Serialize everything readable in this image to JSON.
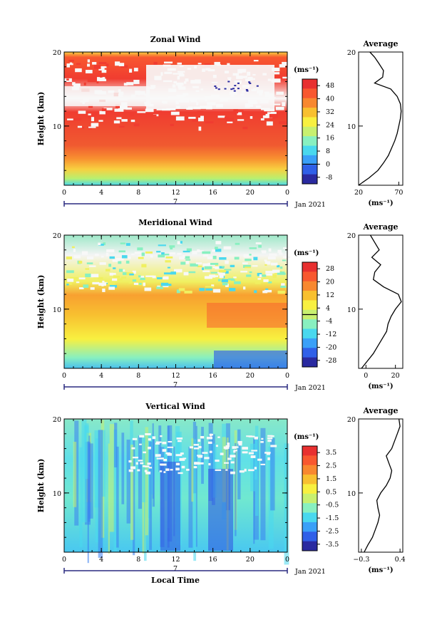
{
  "figure": {
    "background": "#ffffff"
  },
  "colormap": {
    "stops": [
      "#2a2aa0",
      "#3060e8",
      "#3aa0f8",
      "#49d8ee",
      "#88f0c0",
      "#c8f070",
      "#f8f040",
      "#f8c030",
      "#f88830",
      "#f85830",
      "#e83030"
    ]
  },
  "chart_data": [
    {
      "type": "heatmap",
      "title": "Zonal Wind",
      "ylabel": "Height (km)",
      "ylim": [
        2,
        20
      ],
      "y_ticks": [
        "10",
        "20"
      ],
      "x_ticks": [
        "0",
        "4",
        "8",
        "12",
        "16",
        "20",
        "0"
      ],
      "date_marker": "7",
      "date_label": "Jan 2021",
      "colorbar": {
        "unit": "(ms⁻¹)",
        "labels": [
          "48",
          "40",
          "32",
          "24",
          "16",
          "8",
          "0",
          "-8"
        ],
        "vmin": -12,
        "vmax": 52,
        "contour": 0
      },
      "average": {
        "title": "Average",
        "unit": "(ms⁻¹)",
        "x_ticks": [
          "20",
          "70"
        ],
        "xlim": [
          20,
          75
        ],
        "heights": [
          2.0,
          3.0,
          4.0,
          5.0,
          6.0,
          7.0,
          8.0,
          9.0,
          10.0,
          11.0,
          12.0,
          13.0,
          14.0,
          15.0,
          15.8,
          16.6,
          17.5,
          18.5,
          19.3,
          20.0
        ],
        "values": [
          20,
          33,
          44,
          51,
          57,
          61,
          65,
          68,
          70,
          72,
          73,
          72,
          68,
          60,
          40,
          50,
          51,
          45,
          40,
          34
        ]
      }
    },
    {
      "type": "heatmap",
      "title": "Meridional Wind",
      "ylabel": "Height (km)",
      "ylim": [
        2,
        20
      ],
      "y_ticks": [
        "10",
        "20"
      ],
      "x_ticks": [
        "0",
        "4",
        "8",
        "12",
        "16",
        "20",
        "0"
      ],
      "date_marker": "7",
      "date_label": "Jan 2021",
      "colorbar": {
        "unit": "(ms⁻¹)",
        "labels": [
          "28",
          "20",
          "12",
          "4",
          "-4",
          "-12",
          "-20",
          "-28"
        ],
        "vmin": -32,
        "vmax": 32,
        "contour": 0
      },
      "average": {
        "title": "Average",
        "unit": "(ms⁻¹)",
        "x_ticks": [
          "0",
          "20"
        ],
        "xlim": [
          -5,
          25
        ],
        "heights": [
          2.0,
          3.0,
          4.0,
          5.0,
          6.0,
          7.0,
          8.0,
          9.0,
          10.0,
          11.0,
          12.0,
          13.0,
          14.0,
          15.0,
          16.0,
          17.0,
          18.0,
          19.0,
          20.0
        ],
        "values": [
          -3,
          1,
          5,
          8,
          11,
          14,
          15,
          17,
          20,
          24,
          22,
          12,
          5,
          6,
          10,
          4,
          9,
          6,
          3
        ]
      }
    },
    {
      "type": "heatmap",
      "title": "Vertical Wind",
      "ylabel": "Height (km)",
      "xlabel": "Local Time",
      "ylim": [
        2,
        20
      ],
      "y_ticks": [
        "10",
        "20"
      ],
      "x_ticks": [
        "0",
        "4",
        "8",
        "12",
        "16",
        "20",
        "0"
      ],
      "date_marker": "7",
      "date_label": "Jan 2021",
      "colorbar": {
        "unit": "(ms⁻¹)",
        "labels": [
          "3.5",
          "2.5",
          "1.5",
          "0.5",
          "-0.5",
          "-1.5",
          "-2.5",
          "-3.5"
        ],
        "vmin": -4,
        "vmax": 4
      },
      "average": {
        "title": "Average",
        "unit": "(ms⁻¹)",
        "x_ticks": [
          "−0.3",
          "0.4"
        ],
        "xlim": [
          -0.35,
          0.45
        ],
        "heights": [
          2.0,
          3.0,
          4.0,
          5.0,
          6.0,
          7.0,
          8.0,
          9.0,
          10.0,
          11.0,
          12.0,
          13.0,
          14.0,
          15.0,
          16.0,
          17.0,
          18.0,
          19.0,
          20.0
        ],
        "values": [
          -0.25,
          -0.18,
          -0.1,
          -0.05,
          0.0,
          0.03,
          0.0,
          -0.02,
          0.05,
          0.15,
          0.22,
          0.25,
          0.2,
          0.15,
          0.25,
          0.3,
          0.35,
          0.4,
          0.38
        ]
      }
    }
  ]
}
